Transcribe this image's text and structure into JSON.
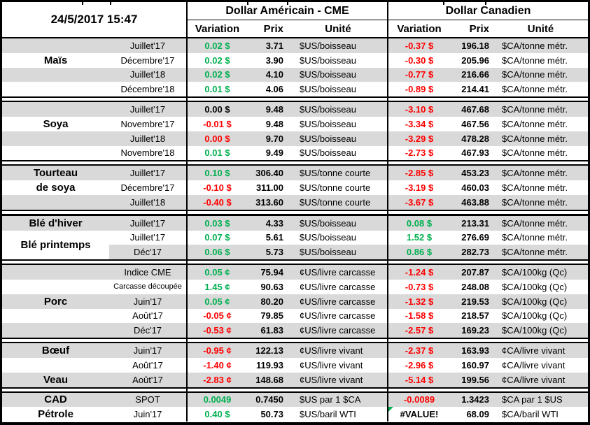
{
  "meta": {
    "colors": {
      "green": "#00B050",
      "red": "#FF0000",
      "black": "#000000",
      "shade": "#D9D9D9"
    }
  },
  "header": {
    "date": "24/5/2017 15:47",
    "us_title": "Dollar Américain - CME",
    "ca_title": "Dollar Canadien",
    "variation": "Variation",
    "prix": "Prix",
    "unite": "Unité"
  },
  "sections": [
    {
      "id": "mais",
      "labels": [
        {
          "text": "Maïs",
          "row": 2
        }
      ],
      "rows": [
        {
          "month": "Juillet'17",
          "var_us": "0.02 $",
          "var_us_color": "green",
          "prix_us": "3.71",
          "unit_us": "$US/boisseau",
          "var_ca": "-0.37 $",
          "var_ca_color": "red",
          "prix_ca": "196.18",
          "unit_ca": "$CA/tonne métr.",
          "shade": true
        },
        {
          "month": "Décembre'17",
          "var_us": "0.02 $",
          "var_us_color": "green",
          "prix_us": "3.90",
          "unit_us": "$US/boisseau",
          "var_ca": "-0.30 $",
          "var_ca_color": "red",
          "prix_ca": "205.96",
          "unit_ca": "$CA/tonne métr.",
          "shade": false
        },
        {
          "month": "Juillet'18",
          "var_us": "0.02 $",
          "var_us_color": "green",
          "prix_us": "4.10",
          "unit_us": "$US/boisseau",
          "var_ca": "-0.77 $",
          "var_ca_color": "red",
          "prix_ca": "216.66",
          "unit_ca": "$CA/tonne métr.",
          "shade": true
        },
        {
          "month": "Décembre'18",
          "var_us": "0.01 $",
          "var_us_color": "green",
          "prix_us": "4.06",
          "unit_us": "$US/boisseau",
          "var_ca": "-0.89 $",
          "var_ca_color": "red",
          "prix_ca": "214.41",
          "unit_ca": "$CA/tonne métr.",
          "shade": false
        }
      ]
    },
    {
      "id": "soya",
      "labels": [
        {
          "text": "Soya",
          "row": 2
        }
      ],
      "rows": [
        {
          "month": "Juillet'17",
          "var_us": "0.00 $",
          "var_us_color": "black",
          "prix_us": "9.48",
          "unit_us": "$US/boisseau",
          "var_ca": "-3.10 $",
          "var_ca_color": "red",
          "prix_ca": "467.68",
          "unit_ca": "$CA/tonne métr.",
          "shade": true
        },
        {
          "month": "Novembre'17",
          "var_us": "-0.01 $",
          "var_us_color": "red",
          "prix_us": "9.48",
          "unit_us": "$US/boisseau",
          "var_ca": "-3.34 $",
          "var_ca_color": "red",
          "prix_ca": "467.56",
          "unit_ca": "$CA/tonne métr.",
          "shade": false
        },
        {
          "month": "Juillet'18",
          "var_us": "0.00 $",
          "var_us_color": "red",
          "prix_us": "9.70",
          "unit_us": "$US/boisseau",
          "var_ca": "-3.29 $",
          "var_ca_color": "red",
          "prix_ca": "478.28",
          "unit_ca": "$CA/tonne métr.",
          "shade": true
        },
        {
          "month": "Novembre'18",
          "var_us": "0.01 $",
          "var_us_color": "green",
          "prix_us": "9.49",
          "unit_us": "$US/boisseau",
          "var_ca": "-2.73 $",
          "var_ca_color": "red",
          "prix_ca": "467.93",
          "unit_ca": "$CA/tonne métr.",
          "shade": false
        }
      ]
    },
    {
      "id": "tourteau-de-soya",
      "labels": [
        {
          "text": "Tourteau",
          "row": 1
        },
        {
          "text": "de soya",
          "row": 2
        }
      ],
      "rows": [
        {
          "month": "Juillet'17",
          "var_us": "0.10 $",
          "var_us_color": "green",
          "prix_us": "306.40",
          "unit_us": "$US/tonne courte",
          "var_ca": "-2.85 $",
          "var_ca_color": "red",
          "prix_ca": "453.23",
          "unit_ca": "$CA/tonne métr.",
          "shade": true
        },
        {
          "month": "Décembre'17",
          "var_us": "-0.10 $",
          "var_us_color": "red",
          "prix_us": "311.00",
          "unit_us": "$US/tonne courte",
          "var_ca": "-3.19 $",
          "var_ca_color": "red",
          "prix_ca": "460.03",
          "unit_ca": "$CA/tonne métr.",
          "shade": false
        },
        {
          "month": "Juillet'18",
          "var_us": "-0.40 $",
          "var_us_color": "red",
          "prix_us": "313.60",
          "unit_us": "$US/tonne courte",
          "var_ca": "-3.67 $",
          "var_ca_color": "red",
          "prix_ca": "463.88",
          "unit_ca": "$CA/tonne métr.",
          "shade": true
        }
      ]
    },
    {
      "id": "ble",
      "thick_top": true,
      "labels": [
        {
          "text": "Blé d'hiver",
          "row": 1
        },
        {
          "text": "Blé printemps",
          "row": 2,
          "span": 2,
          "white": true
        }
      ],
      "rows": [
        {
          "month": "Juillet'17",
          "var_us": "0.03 $",
          "var_us_color": "green",
          "prix_us": "4.33",
          "unit_us": "$US/boisseau",
          "var_ca": "0.08 $",
          "var_ca_color": "green",
          "prix_ca": "213.31",
          "unit_ca": "$CA/tonne métr.",
          "shade": true
        },
        {
          "month": "Juillet'17",
          "var_us": "0.07 $",
          "var_us_color": "green",
          "prix_us": "5.61",
          "unit_us": "$US/boisseau",
          "var_ca": "1.52 $",
          "var_ca_color": "green",
          "prix_ca": "276.69",
          "unit_ca": "$CA/tonne métr.",
          "shade": false
        },
        {
          "month": "Déc'17",
          "var_us": "0.06 $",
          "var_us_color": "green",
          "prix_us": "5.73",
          "unit_us": "$US/boisseau",
          "var_ca": "0.86 $",
          "var_ca_color": "green",
          "prix_ca": "282.73",
          "unit_ca": "$CA/tonne métr.",
          "shade": true,
          "shade_from_month": true
        }
      ]
    },
    {
      "id": "porc",
      "labels": [
        {
          "text": "Porc",
          "row": 3
        }
      ],
      "rows": [
        {
          "month": "Indice CME",
          "var_us": "0.05 ¢",
          "var_us_color": "green",
          "prix_us": "75.94",
          "unit_us": "¢US/livre carcasse",
          "var_ca": "-1.24 $",
          "var_ca_color": "red",
          "prix_ca": "207.87",
          "unit_ca": "$CA/100kg (Qc)",
          "shade": true
        },
        {
          "month": "Carcasse découpée",
          "small": true,
          "var_us": "1.45 ¢",
          "var_us_color": "green",
          "prix_us": "90.63",
          "unit_us": "¢US/livre carcasse",
          "var_ca": "-0.73 $",
          "var_ca_color": "red",
          "prix_ca": "248.08",
          "unit_ca": "$CA/100kg (Qc)",
          "shade": false
        },
        {
          "month": "Juin'17",
          "var_us": "0.05 ¢",
          "var_us_color": "green",
          "prix_us": "80.20",
          "unit_us": "¢US/livre carcasse",
          "var_ca": "-1.32 $",
          "var_ca_color": "red",
          "prix_ca": "219.53",
          "unit_ca": "$CA/100kg (Qc)",
          "shade": true
        },
        {
          "month": "Août'17",
          "var_us": "-0.05 ¢",
          "var_us_color": "red",
          "prix_us": "79.85",
          "unit_us": "¢US/livre carcasse",
          "var_ca": "-1.58 $",
          "var_ca_color": "red",
          "prix_ca": "218.57",
          "unit_ca": "$CA/100kg (Qc)",
          "shade": false
        },
        {
          "month": "Déc'17",
          "var_us": "-0.53 ¢",
          "var_us_color": "red",
          "prix_us": "61.83",
          "unit_us": "¢US/livre carcasse",
          "var_ca": "-2.57 $",
          "var_ca_color": "red",
          "prix_ca": "169.23",
          "unit_ca": "$CA/100kg (Qc)",
          "shade": true
        }
      ]
    },
    {
      "id": "boeuf-veau",
      "labels": [
        {
          "text": "Bœuf",
          "row": 1
        },
        {
          "text": "Veau",
          "row": 3
        }
      ],
      "rows": [
        {
          "month": "Juin'17",
          "var_us": "-0.95 ¢",
          "var_us_color": "red",
          "prix_us": "122.13",
          "unit_us": "¢US/livre vivant",
          "var_ca": "-2.37 $",
          "var_ca_color": "red",
          "prix_ca": "163.93",
          "unit_ca": "¢CA/livre vivant",
          "shade": true
        },
        {
          "month": "Août'17",
          "var_us": "-1.40 ¢",
          "var_us_color": "red",
          "prix_us": "119.93",
          "unit_us": "¢US/livre vivant",
          "var_ca": "-2.96 $",
          "var_ca_color": "red",
          "prix_ca": "160.97",
          "unit_ca": "¢CA/livre vivant",
          "shade": false
        },
        {
          "month": "Août'17",
          "var_us": "-2.83 ¢",
          "var_us_color": "red",
          "prix_us": "148.68",
          "unit_us": "¢US/livre vivant",
          "var_ca": "-5.14 $",
          "var_ca_color": "red",
          "prix_ca": "199.56",
          "unit_ca": "¢CA/livre vivant",
          "shade": true
        }
      ]
    },
    {
      "id": "cad-petrole",
      "last": true,
      "labels": [
        {
          "text": "CAD",
          "row": 1
        },
        {
          "text": "Pétrole",
          "row": 2
        }
      ],
      "rows": [
        {
          "month": "SPOT",
          "var_us": "0.0049",
          "var_us_color": "green",
          "prix_us": "0.7450",
          "unit_us": "$US par 1 $CA",
          "var_ca": "-0.0089",
          "var_ca_color": "red",
          "prix_ca": "1.3423",
          "unit_ca": "$CA par 1 $US",
          "shade": true
        },
        {
          "month": "Juin'17",
          "var_us": "0.40 $",
          "var_us_color": "green",
          "prix_us": "50.73",
          "unit_us": "$US/baril WTI",
          "var_ca": "#VALUE!",
          "var_ca_color": "black",
          "var_ca_flag": true,
          "prix_ca": "68.09",
          "unit_ca": "$CA/baril WTI",
          "shade": false
        }
      ]
    }
  ]
}
